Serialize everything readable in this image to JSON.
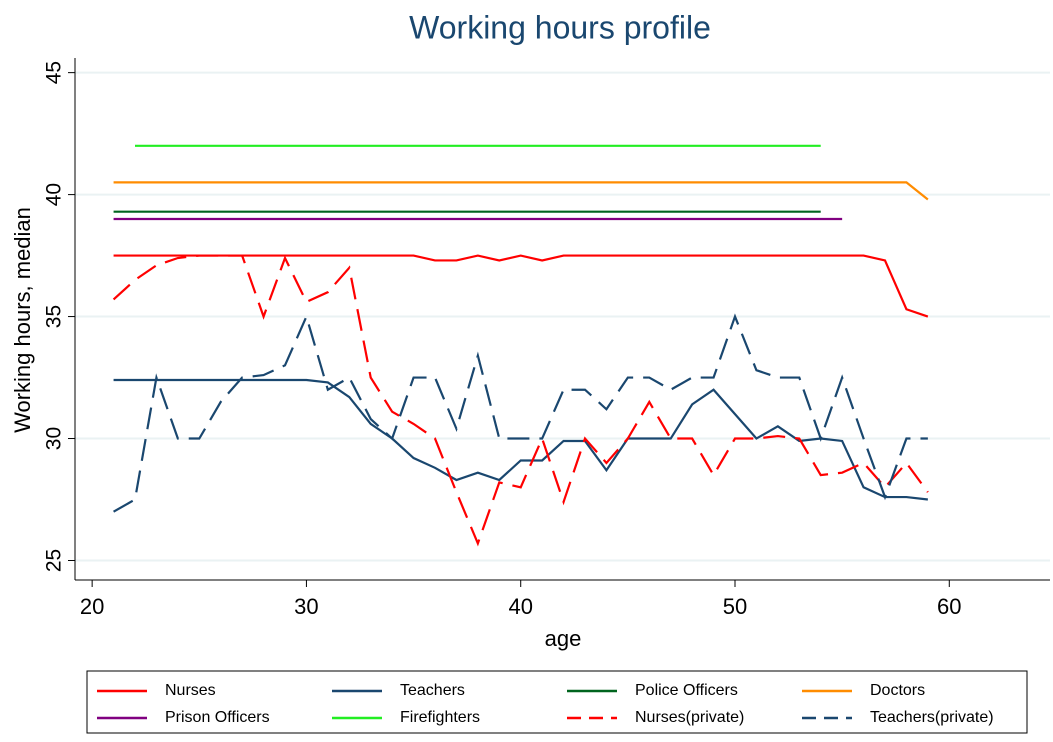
{
  "chart_data": {
    "type": "line",
    "title": "Working hours profile",
    "xlabel": "age",
    "ylabel": "Working hours, median",
    "x": [
      21,
      22,
      23,
      24,
      25,
      26,
      27,
      28,
      29,
      30,
      31,
      32,
      33,
      34,
      35,
      36,
      37,
      38,
      39,
      40,
      41,
      42,
      43,
      44,
      45,
      46,
      47,
      48,
      49,
      50,
      51,
      52,
      53,
      54,
      55,
      56,
      57,
      58,
      59
    ],
    "xlim": [
      19.2,
      64.7
    ],
    "xticks": [
      20,
      30,
      40,
      50,
      60
    ],
    "ylim": [
      24.2,
      45.6
    ],
    "yticks": [
      25,
      30,
      35,
      40,
      45
    ],
    "grid": true,
    "legend": "bottom",
    "series": [
      {
        "name": "Nurses",
        "color": "#ff0000",
        "dash": false,
        "values": [
          37.5,
          37.5,
          37.5,
          37.5,
          37.5,
          37.5,
          37.5,
          37.5,
          37.5,
          37.5,
          37.5,
          37.5,
          37.5,
          37.5,
          37.5,
          37.3,
          37.3,
          37.5,
          37.3,
          37.5,
          37.3,
          37.5,
          37.5,
          37.5,
          37.5,
          37.5,
          37.5,
          37.5,
          37.5,
          37.5,
          37.5,
          37.5,
          37.5,
          37.5,
          37.5,
          37.5,
          37.3,
          35.3,
          35.0
        ]
      },
      {
        "name": "Teachers",
        "color": "#1a476f",
        "dash": false,
        "values": [
          32.4,
          32.4,
          32.4,
          32.4,
          32.4,
          32.4,
          32.4,
          32.4,
          32.4,
          32.4,
          32.3,
          31.7,
          30.6,
          30.0,
          29.2,
          28.8,
          28.3,
          28.6,
          28.3,
          29.1,
          29.1,
          29.9,
          29.9,
          28.7,
          30.0,
          30.0,
          30.0,
          31.4,
          32.0,
          31.0,
          30.0,
          30.5,
          29.9,
          30.0,
          29.9,
          28.0,
          27.6,
          27.6,
          27.5
        ]
      },
      {
        "name": "Police Officers",
        "color": "#00641e",
        "dash": false,
        "values": [
          39.3,
          39.3,
          39.3,
          39.3,
          39.3,
          39.3,
          39.3,
          39.3,
          39.3,
          39.3,
          39.3,
          39.3,
          39.3,
          39.3,
          39.3,
          39.3,
          39.3,
          39.3,
          39.3,
          39.3,
          39.3,
          39.3,
          39.3,
          39.3,
          39.3,
          39.3,
          39.3,
          39.3,
          39.3,
          39.3,
          39.3,
          39.3,
          39.3,
          39.3,
          null,
          null,
          null,
          null,
          null
        ]
      },
      {
        "name": "Doctors",
        "color": "#ff8c00",
        "dash": false,
        "values": [
          40.5,
          40.5,
          40.5,
          40.5,
          40.5,
          40.5,
          40.5,
          40.5,
          40.5,
          40.5,
          40.5,
          40.5,
          40.5,
          40.5,
          40.5,
          40.5,
          40.5,
          40.5,
          40.5,
          40.5,
          40.5,
          40.5,
          40.5,
          40.5,
          40.5,
          40.5,
          40.5,
          40.5,
          40.5,
          40.5,
          40.5,
          40.5,
          40.5,
          40.5,
          40.5,
          40.5,
          40.5,
          40.5,
          39.8
        ]
      },
      {
        "name": "Prison Officers",
        "color": "#800080",
        "dash": false,
        "values": [
          39.0,
          39.0,
          39.0,
          39.0,
          39.0,
          39.0,
          39.0,
          39.0,
          39.0,
          39.0,
          39.0,
          39.0,
          39.0,
          39.0,
          39.0,
          39.0,
          39.0,
          39.0,
          39.0,
          39.0,
          39.0,
          39.0,
          39.0,
          39.0,
          39.0,
          39.0,
          39.0,
          39.0,
          39.0,
          39.0,
          39.0,
          39.0,
          39.0,
          39.0,
          39.0,
          null,
          null,
          null,
          null
        ]
      },
      {
        "name": "Firefighters",
        "color": "#22ee22",
        "dash": false,
        "values": [
          null,
          42,
          42,
          42,
          42,
          42,
          42,
          42,
          42,
          42,
          42,
          42,
          42,
          42,
          42,
          42,
          42,
          42,
          42,
          42,
          42,
          42,
          42,
          42,
          42,
          42,
          42,
          42,
          42,
          42,
          42,
          42,
          42,
          42,
          null,
          null,
          null,
          null,
          null
        ]
      },
      {
        "name": "Nurses(private)",
        "color": "#ff0000",
        "dash": true,
        "values": [
          35.7,
          36.5,
          37.1,
          37.4,
          37.5,
          37.5,
          37.5,
          35.0,
          37.4,
          35.6,
          36.0,
          37.0,
          32.5,
          31.1,
          30.6,
          30.0,
          27.8,
          25.7,
          28.2,
          28.0,
          30.0,
          27.4,
          30.0,
          29.0,
          30.0,
          31.5,
          30.0,
          30.0,
          28.5,
          30.0,
          30.0,
          30.1,
          30.0,
          28.5,
          28.6,
          29.0,
          28.0,
          29.0,
          27.8
        ]
      },
      {
        "name": "Teachers(private)",
        "color": "#1a476f",
        "dash": true,
        "values": [
          27.0,
          27.5,
          32.5,
          30.0,
          30.0,
          31.5,
          32.5,
          32.6,
          33.0,
          35.0,
          32.0,
          32.5,
          30.8,
          30.0,
          32.5,
          32.5,
          30.4,
          33.4,
          30.0,
          30.0,
          30.0,
          32.0,
          32.0,
          31.2,
          32.5,
          32.5,
          32.0,
          32.5,
          32.5,
          35.0,
          32.8,
          32.5,
          32.5,
          30.0,
          32.5,
          30.0,
          27.6,
          30.0,
          30.0
        ]
      }
    ]
  }
}
